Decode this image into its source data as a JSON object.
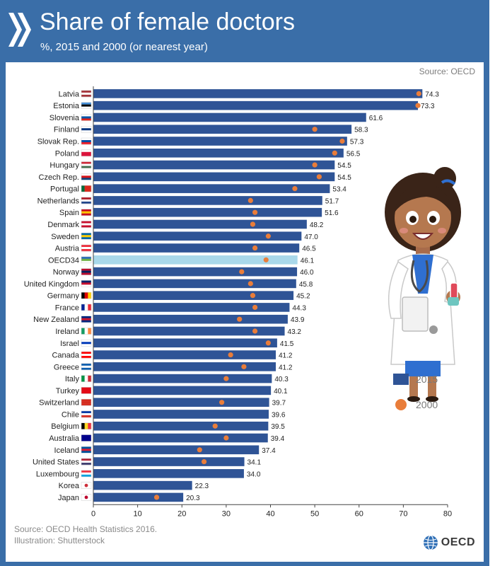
{
  "header": {
    "title": "Share of female doctors",
    "subtitle": "%, 2015 and 2000 (or nearest year)"
  },
  "source_top": "Source: OECD",
  "footer": {
    "line1": "Source: OECD Health Statistics 2016.",
    "line2": "Illustration: Shutterstock"
  },
  "logo_text": "OECD",
  "colors": {
    "bar_2015": "#2f5496",
    "bar_oecd": "#a9d8ea",
    "dot_2000": "#e97d3a",
    "frame": "#3a6ea8"
  },
  "chart_data": {
    "type": "bar",
    "orientation": "horizontal",
    "title": "Share of female doctors",
    "subtitle": "%, 2015 and 2000 (or nearest year)",
    "xlabel": "%",
    "ylabel": "",
    "xlim": [
      0,
      80
    ],
    "xticks": [
      0,
      10,
      20,
      30,
      40,
      50,
      60,
      70,
      80
    ],
    "grid": false,
    "legend_position": "right",
    "highlight": "OECD34",
    "categories": [
      "Latvia",
      "Estonia",
      "Slovenia",
      "Finland",
      "Slovak Rep.",
      "Poland",
      "Hungary",
      "Czech Rep.",
      "Portugal",
      "Netherlands",
      "Spain",
      "Denmark",
      "Sweden",
      "Austria",
      "OECD34",
      "Norway",
      "United Kingdom",
      "Germany",
      "France",
      "New Zealand",
      "Ireland",
      "Israel",
      "Canada",
      "Greece",
      "Italy",
      "Turkey",
      "Switzerland",
      "Chile",
      "Belgium",
      "Australia",
      "Iceland",
      "United States",
      "Luxembourg",
      "Korea",
      "Japan"
    ],
    "series": [
      {
        "name": "2015",
        "mark": "bar",
        "values": [
          74.3,
          73.3,
          61.6,
          58.3,
          57.3,
          56.5,
          54.5,
          54.5,
          53.4,
          51.7,
          51.6,
          48.2,
          47.0,
          46.5,
          46.1,
          46.0,
          45.8,
          45.2,
          44.3,
          43.9,
          43.2,
          41.5,
          41.2,
          41.2,
          40.3,
          40.1,
          39.7,
          39.6,
          39.5,
          39.4,
          37.4,
          34.1,
          34.0,
          22.3,
          20.3
        ],
        "labels": [
          "74.3",
          "73.3",
          "61.6",
          "58.3",
          "57.3",
          "56.5",
          "54.5",
          "54.5",
          "53.4",
          "51.7",
          "51.6",
          "48.2",
          "47.0",
          "46.5",
          "46.1",
          "46.0",
          "45.8",
          "45.2",
          "44.3",
          "43.9",
          "43.2",
          "41.5",
          "41.2",
          "41.2",
          "40.3",
          "40.1",
          "39.7",
          "39.6",
          "39.5",
          "39.4",
          "37.4",
          "34.1",
          "34.0",
          "22.3",
          "20.3"
        ]
      },
      {
        "name": "2000",
        "mark": "dot",
        "values": [
          73.5,
          73.3,
          null,
          50.0,
          56.2,
          54.5,
          50.0,
          51.0,
          45.5,
          35.5,
          36.5,
          36.0,
          39.5,
          36.5,
          39.0,
          33.5,
          35.5,
          36.0,
          36.5,
          33.0,
          36.5,
          39.5,
          31.0,
          34.0,
          30.0,
          null,
          29.0,
          null,
          27.5,
          30.0,
          24.0,
          25.0,
          null,
          null,
          14.3
        ]
      }
    ]
  }
}
